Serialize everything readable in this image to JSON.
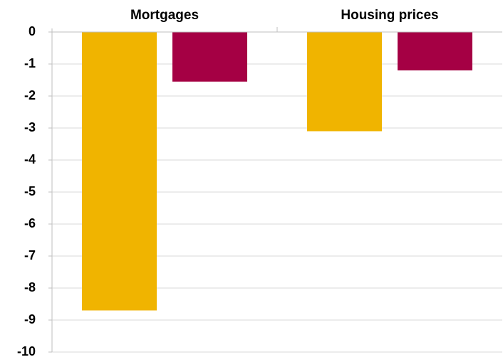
{
  "chart_data": {
    "type": "bar",
    "categories": [
      "Mortgages",
      "Housing prices"
    ],
    "series": [
      {
        "color": "#f0b400",
        "values": [
          -8.7,
          -3.1
        ]
      },
      {
        "color": "#a50044",
        "values": [
          -1.55,
          -1.2
        ]
      }
    ],
    "ylim": [
      -10,
      0
    ],
    "yticks": [
      0,
      -1,
      -2,
      -3,
      -4,
      -5,
      -6,
      -7,
      -8,
      -9,
      -10
    ],
    "grid": true
  }
}
